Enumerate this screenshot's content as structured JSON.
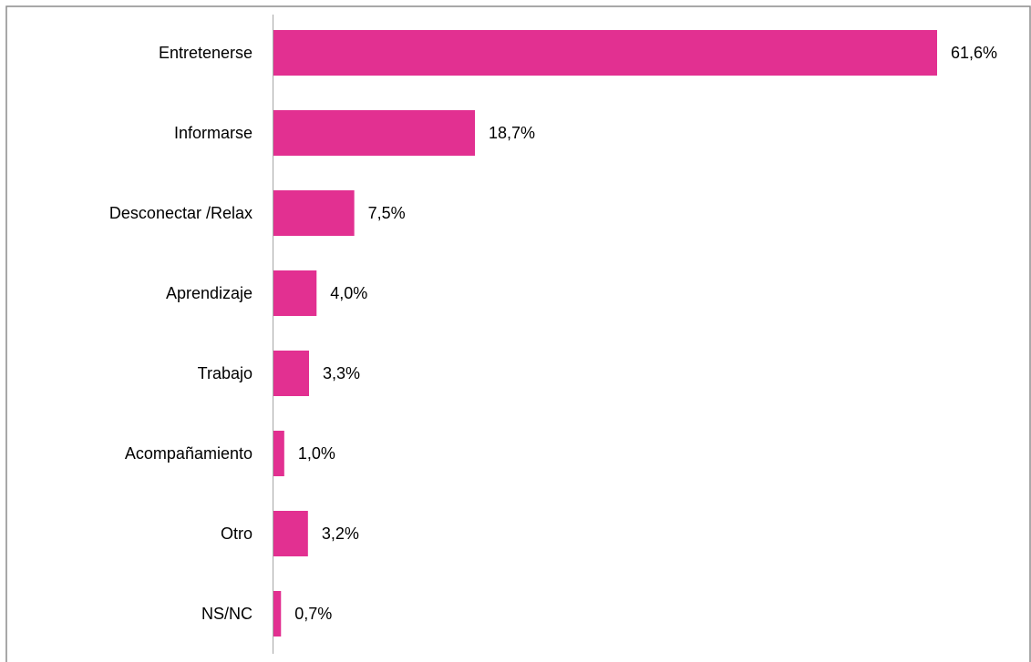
{
  "colors": {
    "bar": "#e23091",
    "axis": "#a6a6a6",
    "border": "#8c8c8c"
  },
  "chart_data": {
    "type": "bar",
    "orientation": "horizontal",
    "title": "",
    "xlabel": "",
    "ylabel": "",
    "categories": [
      "Entretenerse",
      "Informarse",
      "Desconectar /Relax",
      "Aprendizaje",
      "Trabajo",
      "Acompañamiento",
      "Otro",
      "NS/NC"
    ],
    "values": [
      61.6,
      18.7,
      7.5,
      4.0,
      3.3,
      1.0,
      3.2,
      0.7
    ],
    "value_labels": [
      "61,6%",
      "18,7%",
      "7,5%",
      "4,0%",
      "3,3%",
      "1,0%",
      "3,2%",
      "0,7%"
    ],
    "unit": "%",
    "xlim": [
      0,
      61.6
    ],
    "grid": false,
    "legend": "none",
    "data_labels": true
  }
}
